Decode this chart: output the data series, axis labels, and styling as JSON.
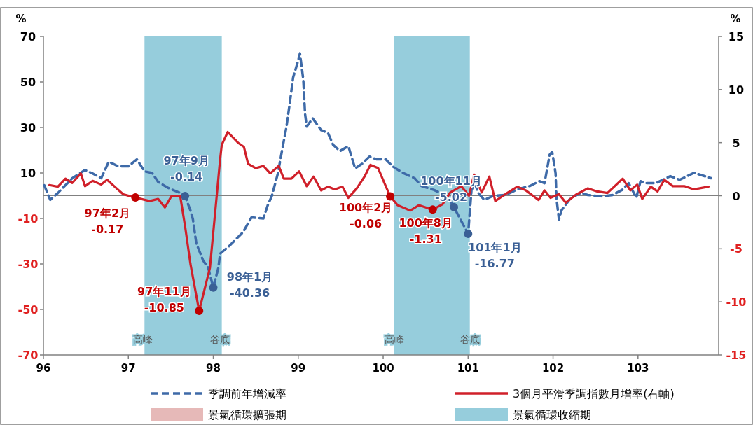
{
  "chart_data": {
    "type": "line",
    "ylabel": "%",
    "y2label": "%",
    "xlim": [
      96,
      103.95
    ],
    "xticks": [
      96,
      97,
      98,
      99,
      100,
      101,
      102,
      103
    ],
    "ylim": [
      -70,
      70
    ],
    "yticks": [
      -70,
      -50,
      -30,
      -10,
      10,
      30,
      50,
      70
    ],
    "y2lim": [
      -15,
      15
    ],
    "y2ticks": [
      -15,
      -10,
      -5,
      0,
      5,
      10,
      15
    ],
    "legend": "bottom",
    "series": [
      {
        "name": "季調前年增減率",
        "type": "line",
        "axis": "y",
        "color": "#3e6aa8",
        "line_style": "dashed",
        "x": [
          96.01,
          96.08,
          96.17,
          96.34,
          96.49,
          96.58,
          96.68,
          96.77,
          96.88,
          97.0,
          97.1,
          97.19,
          97.28,
          97.35,
          97.47,
          97.61,
          97.667,
          97.73,
          97.76,
          97.8,
          97.88,
          97.94,
          98.0,
          98.06,
          98.08,
          98.19,
          98.27,
          98.35,
          98.45,
          98.59,
          98.64,
          98.69,
          98.76,
          98.81,
          98.86,
          98.9,
          98.94,
          99.0,
          99.02,
          99.06,
          99.08,
          99.1,
          99.17,
          99.27,
          99.35,
          99.41,
          99.49,
          99.59,
          99.67,
          99.75,
          99.84,
          99.92,
          100.03,
          100.11,
          100.23,
          100.37,
          100.45,
          100.6,
          100.76,
          100.833,
          101.0,
          101.04,
          101.08,
          101.12,
          101.19,
          101.3,
          101.44,
          101.58,
          101.73,
          101.84,
          101.9,
          101.96,
          101.99,
          102.03,
          102.04,
          102.07,
          102.1,
          102.21,
          102.33,
          102.41,
          102.58,
          102.7,
          102.81,
          102.89,
          102.98,
          103.03,
          103.09,
          103.21,
          103.38,
          103.49,
          103.66,
          103.86
        ],
        "values": [
          4.6,
          -1.8,
          1.2,
          7.7,
          11.3,
          9.8,
          7.7,
          15,
          12.9,
          12.9,
          16,
          10.7,
          10,
          6.1,
          3.4,
          1.2,
          -0.14,
          -6.4,
          -10.4,
          -21,
          -28.5,
          -31.6,
          -40.36,
          -31.6,
          -25.5,
          -22,
          -19,
          -16,
          -9.5,
          -10,
          -4.3,
          0,
          9.8,
          20,
          30,
          40.5,
          52,
          59.5,
          62.6,
          51,
          36,
          30.4,
          34,
          28.8,
          27.6,
          22.4,
          19.6,
          21.8,
          12,
          14,
          17.2,
          16,
          16,
          12.9,
          10.1,
          7.7,
          4.3,
          2.5,
          -0.3,
          -5.02,
          -16.77,
          2.5,
          5.5,
          1.2,
          -1.8,
          0,
          0.3,
          2.8,
          4.3,
          6.4,
          5.5,
          18,
          19.3,
          9.8,
          -1,
          -10.5,
          -6.4,
          -0.9,
          1.2,
          0.3,
          -0.3,
          0.3,
          2.5,
          5.5,
          -0.9,
          6.4,
          5.5,
          5.5,
          8.6,
          7,
          10.1,
          7.7
        ]
      },
      {
        "name": "3個月平滑季調指數月增率(右軸)",
        "type": "line",
        "axis": "y2",
        "color": "#d0202a",
        "line_style": "solid",
        "x": [
          96.07,
          96.17,
          96.26,
          96.34,
          96.44,
          96.49,
          96.58,
          96.68,
          96.75,
          96.86,
          96.94,
          97.083,
          97.25,
          97.35,
          97.43,
          97.51,
          97.61,
          97.67,
          97.73,
          97.833,
          97.96,
          98.04,
          98.08,
          98.1,
          98.17,
          98.29,
          98.36,
          98.41,
          98.5,
          98.59,
          98.67,
          98.77,
          98.83,
          98.92,
          99.01,
          99.1,
          99.18,
          99.27,
          99.35,
          99.43,
          99.52,
          99.59,
          99.69,
          99.78,
          99.85,
          99.94,
          100.03,
          100.083,
          100.17,
          100.32,
          100.42,
          100.583,
          100.7,
          100.79,
          100.92,
          101.01,
          101.07,
          101.16,
          101.25,
          101.32,
          101.44,
          101.58,
          101.68,
          101.83,
          101.9,
          101.97,
          102.07,
          102.15,
          102.27,
          102.41,
          102.52,
          102.64,
          102.82,
          102.91,
          102.99,
          103.05,
          103.15,
          103.23,
          103.31,
          103.41,
          103.55,
          103.66,
          103.83
        ],
        "values": [
          1.0,
          0.85,
          1.6,
          1.2,
          2.1,
          0.9,
          1.4,
          1.05,
          1.5,
          0.7,
          0.13,
          -0.17,
          -0.5,
          -0.3,
          -1.1,
          0,
          0,
          -3,
          -6.4,
          -10.85,
          -6.8,
          0,
          3.4,
          4.8,
          6.0,
          5.0,
          4.6,
          3.0,
          2.6,
          2.8,
          2.1,
          2.8,
          1.6,
          1.6,
          2.3,
          0.9,
          1.8,
          0.5,
          0.85,
          0.6,
          0.85,
          -0.2,
          0.7,
          1.8,
          2.9,
          2.6,
          0.9,
          -0.06,
          -0.9,
          -1.4,
          -0.9,
          -1.31,
          -0.8,
          0.3,
          0.9,
          0,
          2.0,
          0.3,
          1.8,
          -0.5,
          0.15,
          0.85,
          0.5,
          -0.4,
          0.5,
          -0.2,
          0.15,
          -0.65,
          0.1,
          0.7,
          0.4,
          0.25,
          1.6,
          0.5,
          1.05,
          -0.3,
          0.85,
          0.4,
          1.5,
          0.9,
          0.9,
          0.6,
          0.85
        ]
      },
      {
        "type": "scatter",
        "axis": "y2",
        "marker": "circle",
        "color": "#c00000",
        "x": [
          97.083,
          97.833,
          100.083,
          100.583
        ],
        "values": [
          -0.17,
          -10.85,
          -0.06,
          -1.31
        ],
        "value_labels": [
          "97年2月\n-0.17",
          "97年11月\n-10.85",
          "100年2月\n-0.06",
          "100年8月\n-1.31"
        ]
      },
      {
        "type": "scatter",
        "axis": "y",
        "marker": "circle",
        "color": "#3a5f95",
        "x": [
          97.667,
          98.0,
          100.833,
          101.0
        ],
        "values": [
          -0.14,
          -40.36,
          -5.02,
          -16.77
        ],
        "value_labels": [
          "97年9月\n-0.14",
          "98年1月\n-40.36",
          "100年11月\n-5.02",
          "101年1月\n-16.77"
        ]
      }
    ],
    "ref_lines": [
      {
        "axis": "y",
        "value": 0,
        "color": "#808080"
      }
    ],
    "bands": [
      {
        "axis": "x",
        "from": 97.19,
        "to": 98.1,
        "label": "景氣循環收縮期",
        "color": "#96cddc"
      },
      {
        "axis": "x",
        "from": 100.13,
        "to": 101.02,
        "color": "#96cddc"
      }
    ],
    "annotations": [
      "景氣循環擴張期",
      {
        "text": "高峰",
        "x": 97.17
      },
      {
        "text": "谷底",
        "x": 98.08
      },
      {
        "text": "高峰",
        "x": 100.13
      },
      {
        "text": "谷底",
        "x": 101.02
      }
    ]
  }
}
